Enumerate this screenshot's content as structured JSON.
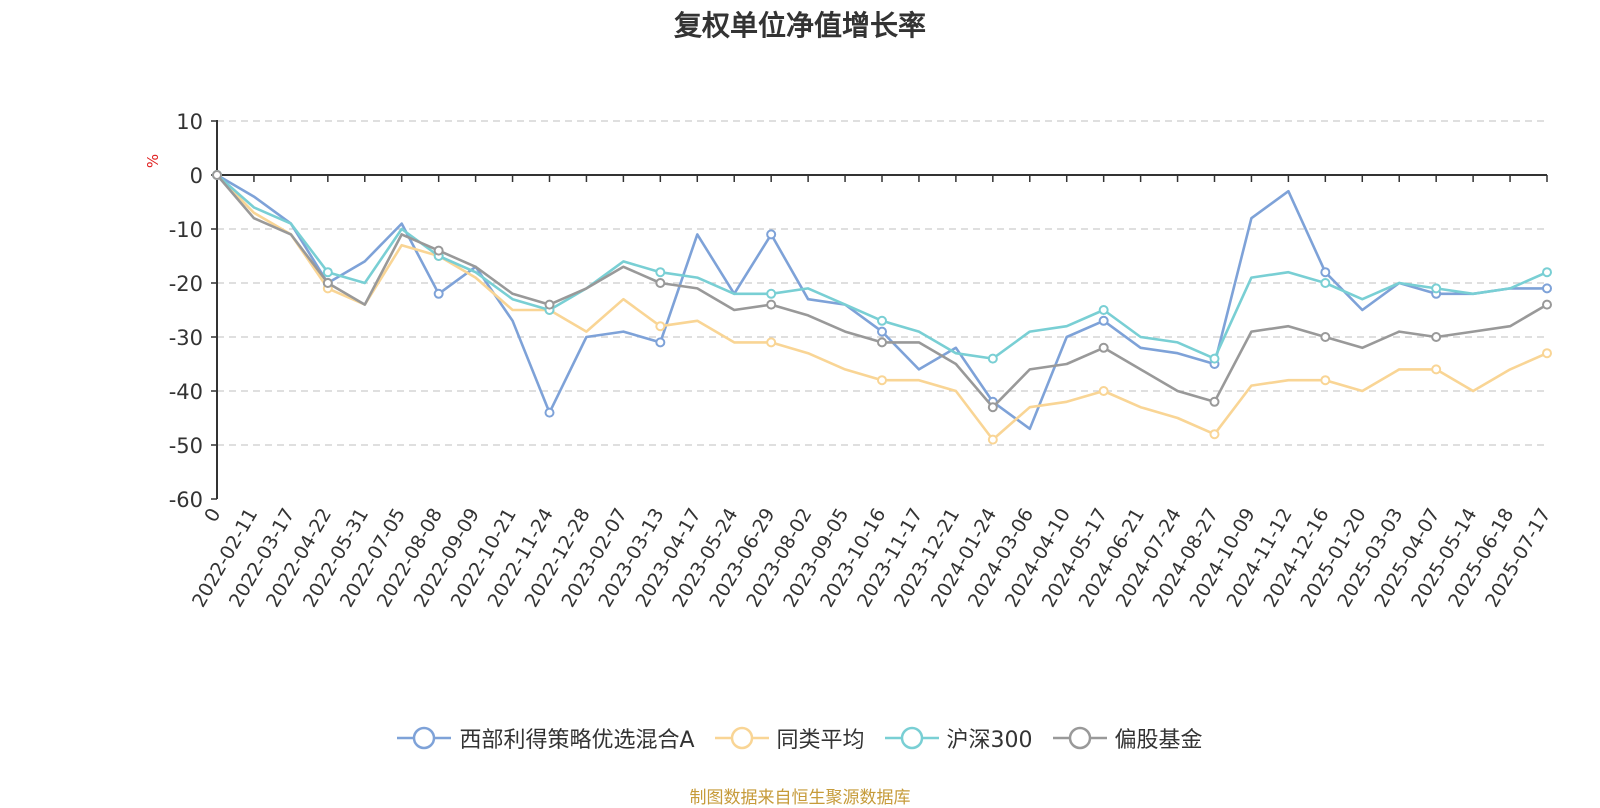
{
  "chart_data": {
    "type": "line",
    "title": "复权单位净值增长率",
    "ylabel": "%",
    "ylim": [
      -60,
      10
    ],
    "yticks": [
      10,
      0,
      -10,
      -20,
      -30,
      -40,
      -50,
      -60
    ],
    "grid": true,
    "legend_position": "bottom",
    "x_labels": [
      "0",
      "2022-02-11",
      "2022-03-17",
      "2022-04-22",
      "2022-05-31",
      "2022-07-05",
      "2022-08-08",
      "2022-09-09",
      "2022-10-21",
      "2022-11-24",
      "2022-12-28",
      "2023-02-07",
      "2023-03-13",
      "2023-04-17",
      "2023-05-24",
      "2023-06-29",
      "2023-08-02",
      "2023-09-05",
      "2023-10-16",
      "2023-11-17",
      "2023-12-21",
      "2024-01-24",
      "2024-03-06",
      "2024-04-10",
      "2024-05-17",
      "2024-06-21",
      "2024-07-24",
      "2024-08-27",
      "2024-10-09",
      "2024-11-12",
      "2024-12-16",
      "2025-01-20",
      "2025-03-03",
      "2025-04-07",
      "2025-05-14",
      "2025-06-18",
      "2025-07-17"
    ],
    "series": [
      {
        "name": "西部利得策略优选混合A",
        "color": "#7ea2d8",
        "values": [
          0,
          -4,
          -9,
          -20,
          -16,
          -9,
          -22,
          -17,
          -27,
          -44,
          -30,
          -29,
          -31,
          -11,
          -22,
          -11,
          -23,
          -24,
          -29,
          -36,
          -32,
          -42,
          -47,
          -30,
          -27,
          -32,
          -33,
          -35,
          -8,
          -3,
          -18,
          -25,
          -20,
          -22,
          -22,
          -21,
          -21
        ]
      },
      {
        "name": "同类平均",
        "color": "#f9d595",
        "values": [
          0,
          -7,
          -11,
          -21,
          -24,
          -13,
          -15,
          -19,
          -25,
          -25,
          -29,
          -23,
          -28,
          -27,
          -31,
          -31,
          -33,
          -36,
          -38,
          -38,
          -40,
          -49,
          -43,
          -42,
          -40,
          -43,
          -45,
          -48,
          -39,
          -38,
          -38,
          -40,
          -36,
          -36,
          -40,
          -36,
          -33
        ]
      },
      {
        "name": "沪深300",
        "color": "#79cfd4",
        "values": [
          0,
          -6,
          -9,
          -18,
          -20,
          -10,
          -15,
          -18,
          -23,
          -25,
          -21,
          -16,
          -18,
          -19,
          -22,
          -22,
          -21,
          -24,
          -27,
          -29,
          -33,
          -34,
          -29,
          -28,
          -25,
          -30,
          -31,
          -34,
          -19,
          -18,
          -20,
          -23,
          -20,
          -21,
          -22,
          -21,
          -18
        ]
      },
      {
        "name": "偏股基金",
        "color": "#999999",
        "values": [
          0,
          -8,
          -11,
          -20,
          -24,
          -11,
          -14,
          -17,
          -22,
          -24,
          -21,
          -17,
          -20,
          -21,
          -25,
          -24,
          -26,
          -29,
          -31,
          -31,
          -35,
          -43,
          -36,
          -35,
          -32,
          -36,
          -40,
          -42,
          -29,
          -28,
          -30,
          -32,
          -29,
          -30,
          -29,
          -28,
          -24
        ]
      }
    ],
    "source_note": "制图数据来自恒生聚源数据库"
  }
}
